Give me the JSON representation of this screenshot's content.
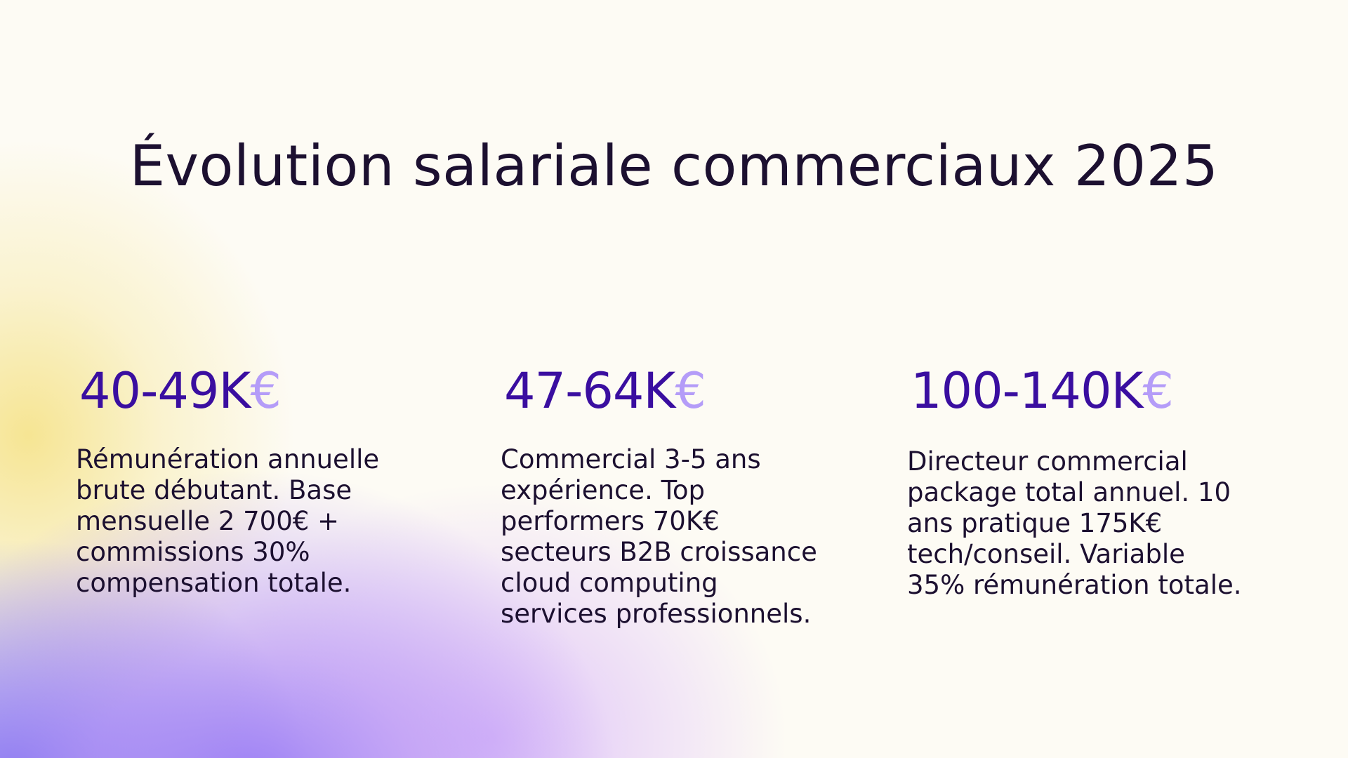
{
  "title": "Évolution salariale commerciaux 2025",
  "colors": {
    "accent": "#3a0ea0",
    "euro": "#b49cf8",
    "text": "#1c1030",
    "background": "#fdfbf4"
  },
  "columns": [
    {
      "value": "40-49K",
      "currency": "€",
      "lines": [
        "Rémunération annuelle",
        "brute débutant. Base",
        "mensuelle 2 700€ +",
        "commissions 30%",
        "compensation totale."
      ]
    },
    {
      "value": "47-64K",
      "currency": "€",
      "lines": [
        "Commercial 3-5 ans",
        "expérience. Top",
        "performers 70K€",
        "secteurs B2B croissance",
        "cloud computing",
        "services professionnels."
      ]
    },
    {
      "value": "100-140K",
      "currency": "€",
      "lines": [
        "Directeur commercial",
        "package total annuel. 10",
        "ans pratique 175K€",
        "tech/conseil. Variable",
        "35% rémunération totale."
      ]
    }
  ]
}
